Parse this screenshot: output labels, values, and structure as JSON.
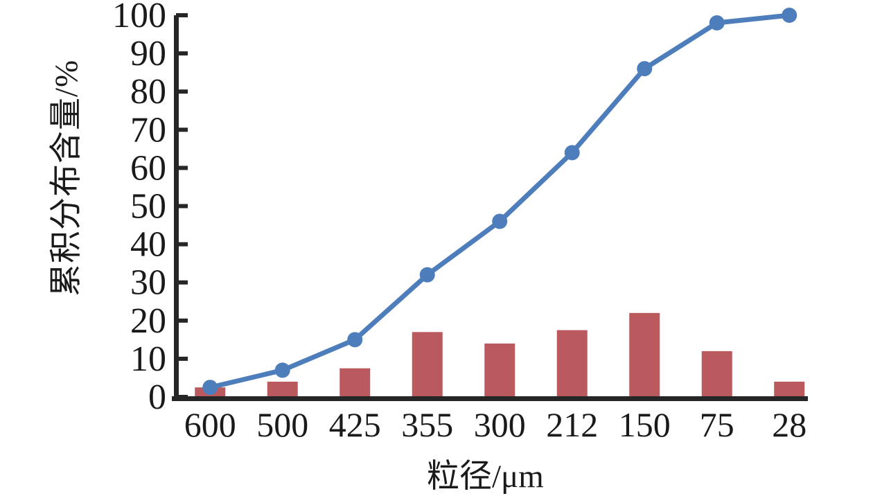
{
  "chart_data": {
    "type": "combo-bar-line",
    "title": "",
    "categories": [
      "600",
      "500",
      "425",
      "355",
      "300",
      "212",
      "150",
      "75",
      "28"
    ],
    "series": [
      {
        "name": "interval-distribution-bars",
        "type": "bar",
        "color": "#bb5a5e",
        "values": [
          2.5,
          4,
          7.5,
          17,
          14,
          17.5,
          22,
          12,
          4
        ]
      },
      {
        "name": "cumulative-distribution-line",
        "type": "line",
        "color": "#4d7ebb",
        "values": [
          2.5,
          7,
          15,
          32,
          46,
          64,
          86,
          98,
          100
        ]
      }
    ],
    "xlabel": "粒径/μm",
    "ylabel": "累积分布含量/%",
    "ylim": [
      0,
      100
    ],
    "yticks": [
      0,
      10,
      20,
      30,
      40,
      50,
      60,
      70,
      80,
      90,
      100
    ],
    "grid": false,
    "legend_position": "none",
    "axis_color": "#262626",
    "text_color": "#1a1a1a"
  }
}
